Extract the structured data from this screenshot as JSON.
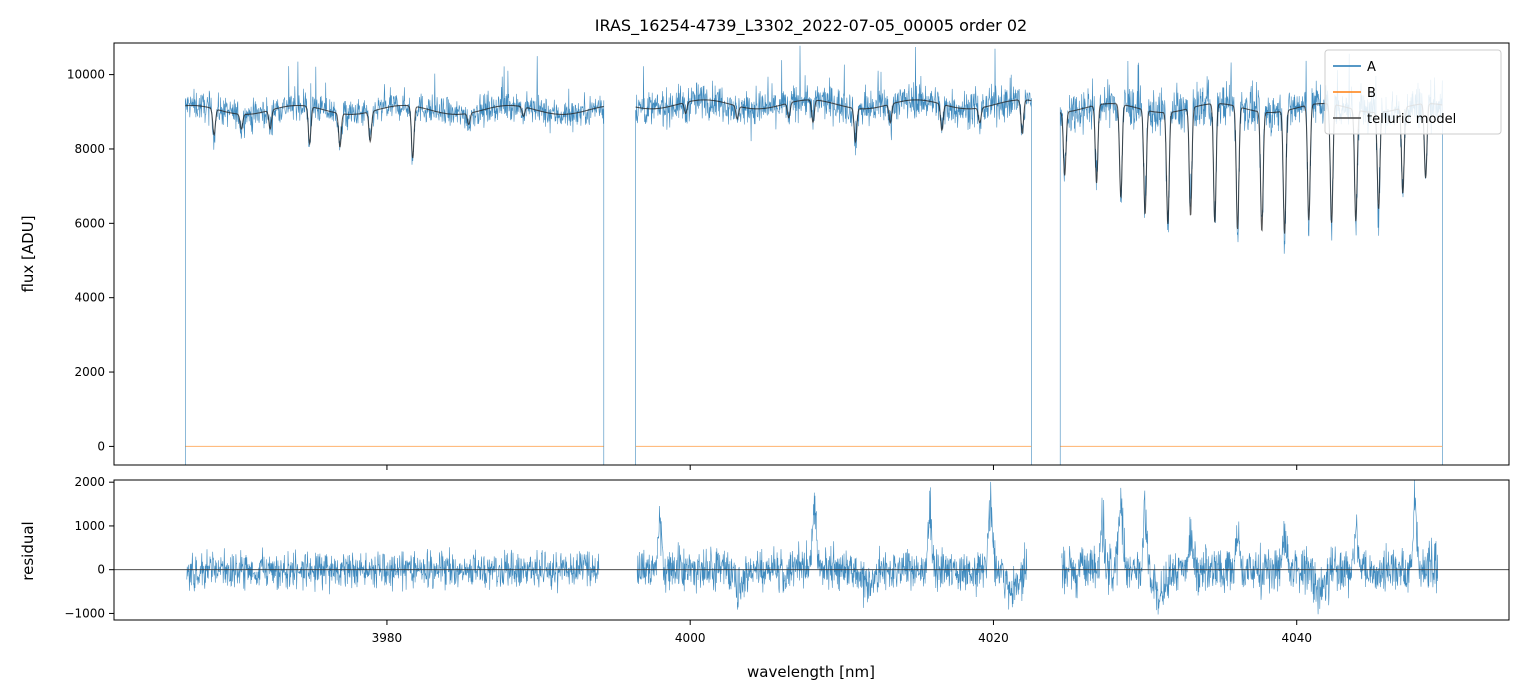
{
  "chart_data": [
    {
      "type": "line",
      "title": "IRAS_16254-4739_L3302_2022-07-05_00005  order 02",
      "xlabel": "",
      "ylabel": "flux [ADU]",
      "xlim": [
        3962,
        4054
      ],
      "ylim": [
        -500,
        10850
      ],
      "xticks": [
        3980,
        4000,
        4020,
        4040
      ],
      "yticks": [
        0,
        2000,
        4000,
        6000,
        8000,
        10000
      ],
      "ytick_labels": [
        "0",
        "2000",
        "4000",
        "6000",
        "8000",
        "10000"
      ],
      "legend": {
        "placement": "top-right",
        "entries": [
          "A",
          "B",
          "telluric model"
        ]
      },
      "colors": {
        "A": "#1f77b4",
        "B": "#ff7f0e",
        "model": "#222222"
      },
      "segments": [
        {
          "x": [
            3966.7,
            3994.3
          ],
          "A_level": 9000,
          "A_noise": 280,
          "model_level": 9050,
          "model_lines": [
            3968.6,
            3970.4,
            3972.3,
            3974.9,
            3976.9,
            3978.9,
            3981.7,
            3985.4,
            3989.0
          ],
          "model_line_depth": [
            700,
            400,
            500,
            1000,
            900,
            800,
            1400,
            300,
            250
          ]
        },
        {
          "x": [
            3996.4,
            4022.5
          ],
          "A_level": 9250,
          "A_noise": 340,
          "model_level": 9200,
          "model_lines": [
            3999.7,
            4003.1,
            4006.5,
            4008.1,
            4010.9,
            4013.2,
            4016.6,
            4019.1,
            4021.9
          ],
          "model_line_depth": [
            300,
            350,
            400,
            600,
            900,
            500,
            700,
            400,
            900
          ]
        },
        {
          "x": [
            4024.4,
            4049.6
          ],
          "A_level": 9200,
          "A_noise": 420,
          "model_level": 9100,
          "model_lines": [
            4024.7,
            4026.8,
            4028.4,
            4030.0,
            4031.5,
            4033.0,
            4034.6,
            4036.1,
            4037.7,
            4039.2,
            4040.8,
            4042.3,
            4043.9,
            4045.4,
            4047.0,
            4048.5
          ],
          "model_line_depth": [
            1700,
            2100,
            2500,
            2800,
            3000,
            2900,
            3200,
            3300,
            3200,
            3300,
            3100,
            3200,
            3000,
            2600,
            2300,
            2000
          ]
        }
      ],
      "B_level": 0
    },
    {
      "type": "line",
      "title": "",
      "xlabel": "wavelength [nm]",
      "ylabel": "residual",
      "xlim": [
        3962,
        4054
      ],
      "ylim": [
        -1150,
        2050
      ],
      "xticks": [
        3980,
        4000,
        4020,
        4040
      ],
      "xtick_labels": [
        "3980",
        "4000",
        "4020",
        "4040"
      ],
      "yticks": [
        -1000,
        0,
        1000,
        2000
      ],
      "ytick_labels": [
        "−1000",
        "0",
        "1000",
        "2000"
      ],
      "hline": 0,
      "residual_noise": 380,
      "residual_peaks": [
        [
          3998.0,
          1300
        ],
        [
          4008.2,
          2000
        ],
        [
          4015.8,
          1700
        ],
        [
          4019.8,
          1900
        ],
        [
          4027.2,
          1000
        ],
        [
          4028.4,
          2000
        ],
        [
          4030.0,
          1500
        ],
        [
          4033.0,
          1000
        ],
        [
          4036.1,
          900
        ],
        [
          4039.2,
          1000
        ],
        [
          4043.9,
          900
        ],
        [
          4047.8,
          1800
        ]
      ],
      "residual_dips": [
        [
          4003.3,
          -900
        ],
        [
          4011.7,
          -800
        ],
        [
          4021.2,
          -1100
        ],
        [
          4031.0,
          -1150
        ],
        [
          4041.6,
          -1000
        ]
      ]
    }
  ]
}
